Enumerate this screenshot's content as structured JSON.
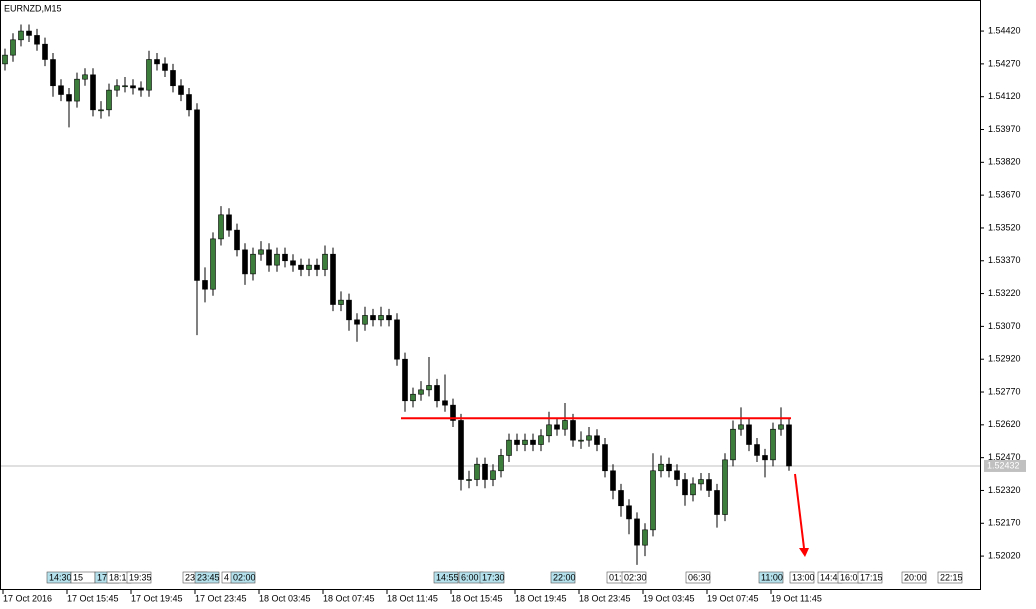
{
  "chart_data": {
    "type": "candlestick",
    "title": "EURNZD,M15",
    "ylim": [
      1.51865,
      1.54562
    ],
    "yticks": [
      {
        "value": 1.5442,
        "label": "1.54420"
      },
      {
        "value": 1.5427,
        "label": "1.54270"
      },
      {
        "value": 1.5412,
        "label": "1.54120"
      },
      {
        "value": 1.5397,
        "label": "1.53970"
      },
      {
        "value": 1.5382,
        "label": "1.53820"
      },
      {
        "value": 1.5367,
        "label": "1.53670"
      },
      {
        "value": 1.5352,
        "label": "1.53520"
      },
      {
        "value": 1.5337,
        "label": "1.53370"
      },
      {
        "value": 1.5322,
        "label": "1.53220"
      },
      {
        "value": 1.5307,
        "label": "1.53070"
      },
      {
        "value": 1.5292,
        "label": "1.52920"
      },
      {
        "value": 1.5277,
        "label": "1.52770"
      },
      {
        "value": 1.5262,
        "label": "1.52620"
      },
      {
        "value": 1.5247,
        "label": "1.52470"
      },
      {
        "value": 1.5232,
        "label": "1.52320"
      },
      {
        "value": 1.5217,
        "label": "1.52170"
      },
      {
        "value": 1.5202,
        "label": "1.52020"
      }
    ],
    "time_labels": [
      "17 Oct 2016",
      "17 Oct 15:45",
      "17 Oct 19:45",
      "17 Oct 23:45",
      "18 Oct 03:45",
      "18 Oct 07:45",
      "18 Oct 11:45",
      "18 Oct 15:45",
      "18 Oct 19:45",
      "18 Oct 23:45",
      "19 Oct 03:45",
      "19 Oct 07:45",
      "19 Oct 11:45"
    ],
    "event_labels": [
      "14:30",
      "15",
      "17",
      "18:1",
      "19:35",
      "23",
      "23:45",
      "4",
      "02:00",
      "14:55",
      "6:00",
      "17:30",
      "22:00",
      "01:",
      "02:30",
      "06:30",
      "11:00",
      "13:00",
      "14:4",
      "16:0",
      "17:15",
      "20:00",
      "22:15"
    ],
    "last_price": {
      "value": 1.52432,
      "label": "1.52432"
    },
    "level": 1.5265,
    "level_color": "#ff0000",
    "bull_color": "#3c7d3c",
    "bear_color": "#000000",
    "open": [
      1.5427,
      1.5431,
      1.5438,
      1.5442,
      1.544,
      1.5436,
      1.5429,
      1.5417,
      1.5413,
      1.541,
      1.542,
      1.5422,
      1.5406,
      1.5406,
      1.5415,
      1.5417,
      1.5417,
      1.5416,
      1.5415,
      1.5429,
      1.5427,
      1.5424,
      1.5417,
      1.5413,
      1.5406,
      1.5328,
      1.5324,
      1.5347,
      1.5358,
      1.5351,
      1.5342,
      1.5331,
      1.534,
      1.5342,
      1.5335,
      1.534,
      1.5337,
      1.5335,
      1.5333,
      1.5335,
      1.5333,
      1.534,
      1.5317,
      1.5319,
      1.531,
      1.5308,
      1.5312,
      1.531,
      1.5312,
      1.531,
      1.5292,
      1.5273,
      1.5276,
      1.5278,
      1.528,
      1.5273,
      1.5271,
      1.5264,
      1.5237,
      1.5237,
      1.5244,
      1.5237,
      1.5241,
      1.5248,
      1.5255,
      1.5253,
      1.5255,
      1.5253,
      1.5257,
      1.5262,
      1.526,
      1.5264,
      1.5255,
      1.5255,
      1.5257,
      1.5253,
      1.5241,
      1.5232,
      1.5225,
      1.5219,
      1.5207,
      1.5214,
      1.5241,
      1.5244,
      1.5241,
      1.5237,
      1.523,
      1.5235,
      1.5237,
      1.5232,
      1.5221,
      1.5246,
      1.526,
      1.5262,
      1.5253,
      1.5248,
      1.5246,
      1.526,
      1.5262
    ],
    "high": [
      1.5434,
      1.5441,
      1.5445,
      1.5445,
      1.5443,
      1.5439,
      1.5432,
      1.542,
      1.5416,
      1.5423,
      1.5425,
      1.5425,
      1.541,
      1.5418,
      1.542,
      1.5421,
      1.542,
      1.5419,
      1.5433,
      1.5432,
      1.543,
      1.5427,
      1.542,
      1.5416,
      1.5409,
      1.5334,
      1.535,
      1.5362,
      1.5361,
      1.5354,
      1.5345,
      1.5343,
      1.5346,
      1.5345,
      1.5343,
      1.5343,
      1.534,
      1.5338,
      1.5338,
      1.5338,
      1.5344,
      1.5343,
      1.5323,
      1.5322,
      1.5313,
      1.5316,
      1.5315,
      1.5316,
      1.5315,
      1.5313,
      1.5295,
      1.5279,
      1.5282,
      1.5293,
      1.5283,
      1.5285,
      1.5274,
      1.5267,
      1.5241,
      1.5247,
      1.5247,
      1.5244,
      1.5251,
      1.5258,
      1.5258,
      1.5258,
      1.5258,
      1.526,
      1.5268,
      1.5265,
      1.5272,
      1.5267,
      1.5259,
      1.5261,
      1.526,
      1.5256,
      1.5244,
      1.5235,
      1.5228,
      1.5222,
      1.5217,
      1.5249,
      1.5248,
      1.5247,
      1.5244,
      1.524,
      1.5238,
      1.524,
      1.524,
      1.5235,
      1.5249,
      1.5264,
      1.527,
      1.5265,
      1.5256,
      1.5251,
      1.5263,
      1.527,
      1.5265
    ],
    "low": [
      1.5424,
      1.5428,
      1.5435,
      1.5437,
      1.5433,
      1.5426,
      1.5412,
      1.541,
      1.5398,
      1.5407,
      1.5417,
      1.5403,
      1.5402,
      1.5403,
      1.5412,
      1.5414,
      1.5413,
      1.5412,
      1.5412,
      1.5424,
      1.5421,
      1.5414,
      1.541,
      1.5403,
      1.5303,
      1.5318,
      1.5321,
      1.5344,
      1.5348,
      1.5339,
      1.5326,
      1.5328,
      1.5337,
      1.5332,
      1.5332,
      1.5334,
      1.5332,
      1.533,
      1.533,
      1.533,
      1.533,
      1.5314,
      1.5314,
      1.5305,
      1.53,
      1.5305,
      1.5307,
      1.5307,
      1.5307,
      1.5289,
      1.5268,
      1.527,
      1.5273,
      1.5275,
      1.527,
      1.5268,
      1.5261,
      1.5232,
      1.5233,
      1.5234,
      1.5233,
      1.5234,
      1.5238,
      1.5245,
      1.525,
      1.525,
      1.525,
      1.525,
      1.5254,
      1.5257,
      1.5257,
      1.5252,
      1.5251,
      1.5252,
      1.525,
      1.5238,
      1.5228,
      1.522,
      1.5212,
      1.5198,
      1.5202,
      1.5211,
      1.5238,
      1.5238,
      1.5234,
      1.5225,
      1.5227,
      1.5232,
      1.5229,
      1.5215,
      1.5218,
      1.5243,
      1.5257,
      1.525,
      1.5245,
      1.5238,
      1.5243,
      1.5257,
      1.5241
    ],
    "close": [
      1.5431,
      1.5438,
      1.5442,
      1.544,
      1.5436,
      1.5429,
      1.5417,
      1.5413,
      1.541,
      1.542,
      1.5422,
      1.5406,
      1.5406,
      1.5415,
      1.5417,
      1.5417,
      1.5416,
      1.5415,
      1.5429,
      1.5427,
      1.5424,
      1.5417,
      1.5413,
      1.5406,
      1.5328,
      1.5324,
      1.5347,
      1.5358,
      1.5351,
      1.5342,
      1.5331,
      1.534,
      1.5342,
      1.5335,
      1.534,
      1.5337,
      1.5335,
      1.5333,
      1.5335,
      1.5333,
      1.534,
      1.5317,
      1.5319,
      1.531,
      1.5308,
      1.5312,
      1.531,
      1.5312,
      1.531,
      1.5292,
      1.5273,
      1.5276,
      1.5278,
      1.528,
      1.5273,
      1.5271,
      1.5264,
      1.5237,
      1.5237,
      1.5244,
      1.5237,
      1.5241,
      1.5248,
      1.5255,
      1.5253,
      1.5255,
      1.5253,
      1.5257,
      1.5262,
      1.526,
      1.5264,
      1.5255,
      1.5255,
      1.5257,
      1.5253,
      1.5241,
      1.5232,
      1.5225,
      1.5219,
      1.5207,
      1.5214,
      1.5241,
      1.5244,
      1.5241,
      1.5237,
      1.523,
      1.5235,
      1.5237,
      1.5232,
      1.5221,
      1.5246,
      1.526,
      1.5262,
      1.5253,
      1.5248,
      1.5246,
      1.526,
      1.5262,
      1.52432
    ]
  }
}
